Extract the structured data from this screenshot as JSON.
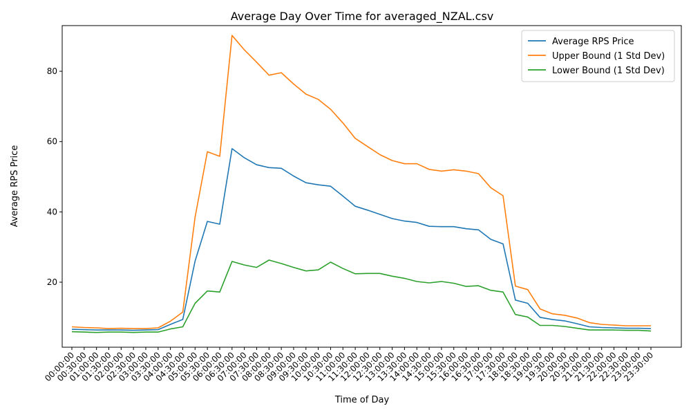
{
  "chart_data": {
    "type": "line",
    "title": "Average Day Over Time for averaged_NZAL.csv",
    "xlabel": "Time of Day",
    "ylabel": "Average RPS Price",
    "ylim": [
      1.5,
      93.0
    ],
    "yticks": [
      20,
      40,
      60,
      80
    ],
    "legend_position": "top-right",
    "grid": false,
    "categories": [
      "00:00:00",
      "00:30:00",
      "01:00:00",
      "01:30:00",
      "02:00:00",
      "02:30:00",
      "03:00:00",
      "03:30:00",
      "04:00:00",
      "04:30:00",
      "05:00:00",
      "05:30:00",
      "06:00:00",
      "06:30:00",
      "07:00:00",
      "07:30:00",
      "08:00:00",
      "08:30:00",
      "09:00:00",
      "09:30:00",
      "10:00:00",
      "10:30:00",
      "11:00:00",
      "11:30:00",
      "12:00:00",
      "12:30:00",
      "13:00:00",
      "13:30:00",
      "14:00:00",
      "14:30:00",
      "15:00:00",
      "15:30:00",
      "16:00:00",
      "16:30:00",
      "17:00:00",
      "17:30:00",
      "18:00:00",
      "18:30:00",
      "19:00:00",
      "19:30:00",
      "20:00:00",
      "20:30:00",
      "21:00:00",
      "21:30:00",
      "22:00:00",
      "22:30:00",
      "23:00:00",
      "23:30:00"
    ],
    "series": [
      {
        "name": "Average RPS Price",
        "color": "#1f77b4",
        "values": [
          6.6,
          6.5,
          6.4,
          6.4,
          6.4,
          6.3,
          6.4,
          6.5,
          8.0,
          9.4,
          26.0,
          37.3,
          36.5,
          58.0,
          55.4,
          53.4,
          52.6,
          52.4,
          50.2,
          48.3,
          47.7,
          47.3,
          44.5,
          41.6,
          40.5,
          39.3,
          38.1,
          37.4,
          37.0,
          35.9,
          35.8,
          35.8,
          35.2,
          34.9,
          32.2,
          30.9,
          14.9,
          14.0,
          10.0,
          9.4,
          9.0,
          8.2,
          7.3,
          7.1,
          7.0,
          6.9,
          6.9,
          6.8
        ]
      },
      {
        "name": "Upper Bound (1 Std Dev)",
        "color": "#ff7f0e",
        "values": [
          7.3,
          7.1,
          7.0,
          6.8,
          6.9,
          6.8,
          6.8,
          7.0,
          8.9,
          11.5,
          38.5,
          57.1,
          55.8,
          90.2,
          86.1,
          82.6,
          78.9,
          79.6,
          76.4,
          73.5,
          72.0,
          69.2,
          65.3,
          60.9,
          58.6,
          56.3,
          54.6,
          53.7,
          53.7,
          52.1,
          51.6,
          52.0,
          51.6,
          50.9,
          46.9,
          44.6,
          18.9,
          17.9,
          12.4,
          11.0,
          10.6,
          9.8,
          8.5,
          8.0,
          7.8,
          7.6,
          7.6,
          7.6
        ]
      },
      {
        "name": "Lower Bound (1 Std Dev)",
        "color": "#2ca02c",
        "values": [
          5.9,
          5.8,
          5.7,
          5.8,
          5.8,
          5.7,
          5.8,
          5.8,
          6.7,
          7.3,
          14.0,
          17.5,
          17.2,
          25.9,
          24.9,
          24.2,
          26.3,
          25.3,
          24.2,
          23.2,
          23.5,
          25.7,
          23.9,
          22.4,
          22.5,
          22.5,
          21.7,
          21.1,
          20.2,
          19.8,
          20.2,
          19.7,
          18.8,
          19.0,
          17.7,
          17.2,
          10.8,
          10.1,
          7.7,
          7.7,
          7.4,
          6.9,
          6.4,
          6.4,
          6.4,
          6.3,
          6.3,
          6.1
        ]
      }
    ]
  }
}
